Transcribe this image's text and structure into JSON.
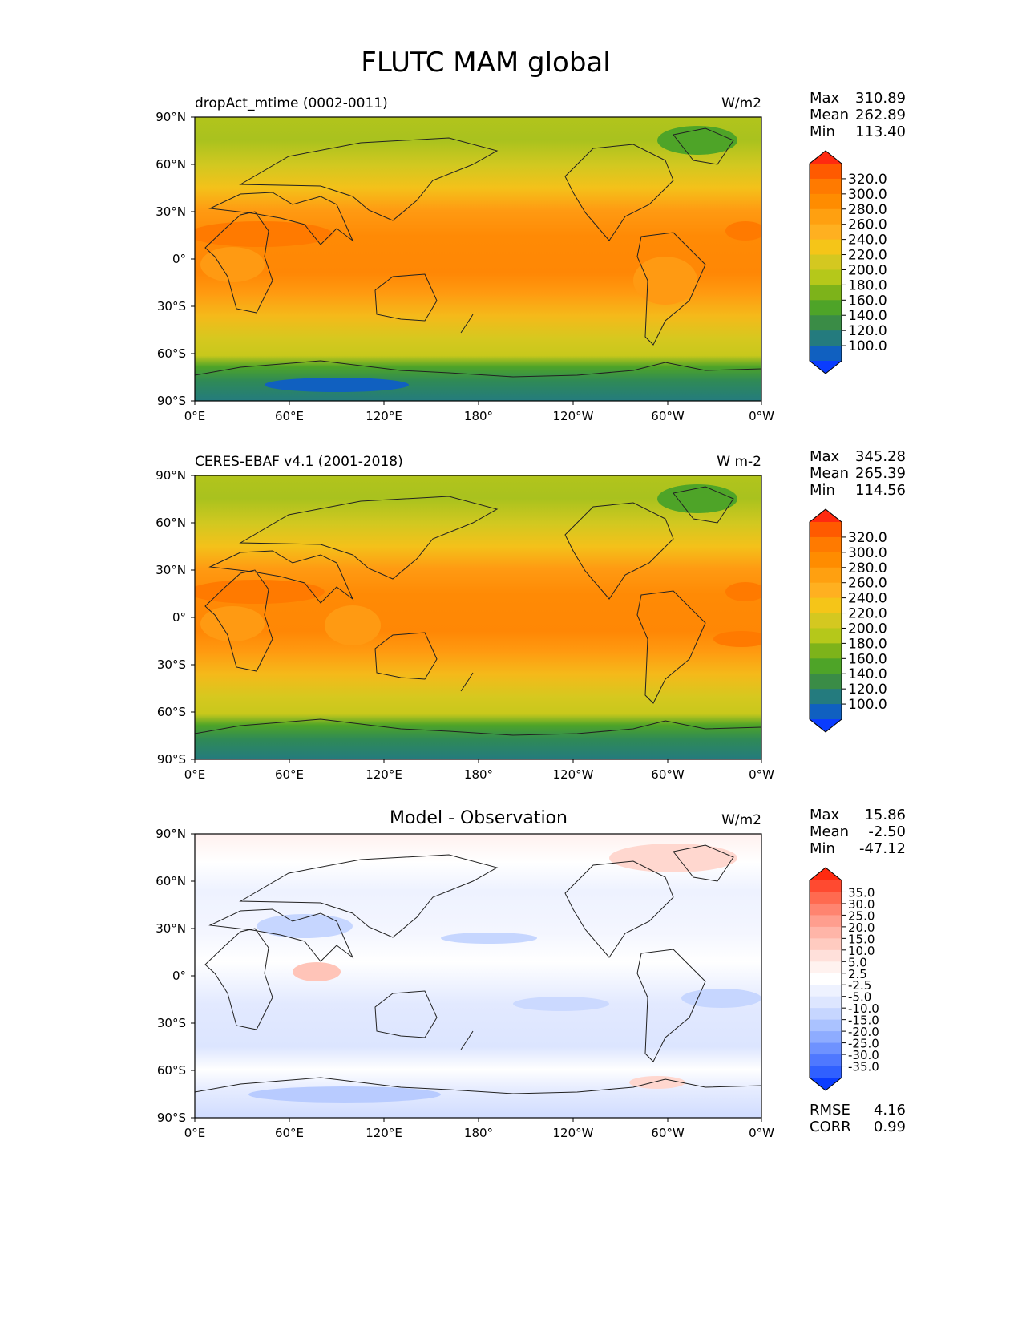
{
  "figure": {
    "title": "FLUTC MAM global"
  },
  "axes": {
    "lat_ticks": [
      "90°N",
      "60°N",
      "30°N",
      "0°",
      "30°S",
      "60°S",
      "90°S"
    ],
    "lon_ticks": [
      "0°E",
      "60°E",
      "120°E",
      "180°",
      "120°W",
      "60°W",
      "0°W"
    ]
  },
  "panels": [
    {
      "title_left": "dropAct_mtime (0002-0011)",
      "title_center": "",
      "units": "W/m2",
      "stats": [
        {
          "label": "Max",
          "value": "310.89"
        },
        {
          "label": "Mean",
          "value": "262.89"
        },
        {
          "label": "Min",
          "value": "113.40"
        }
      ],
      "colorbar": {
        "labels": [
          "320.0",
          "300.0",
          "280.0",
          "260.0",
          "240.0",
          "220.0",
          "200.0",
          "180.0",
          "160.0",
          "140.0",
          "120.0",
          "100.0"
        ],
        "colors": [
          "#ff5a00",
          "#ff7a00",
          "#ff8c00",
          "#ffa010",
          "#ffb020",
          "#f5c518",
          "#d4c820",
          "#b5c81a",
          "#7db31a",
          "#4ea428",
          "#3a8c46",
          "#247b7e",
          "#1060c0"
        ],
        "extend_top": "#ff2a10",
        "extend_bottom": "#0a3cff"
      },
      "extra_stats": []
    },
    {
      "title_left": "CERES-EBAF v4.1 (2001-2018)",
      "title_center": "",
      "units": "W m-2",
      "stats": [
        {
          "label": "Max",
          "value": "345.28"
        },
        {
          "label": "Mean",
          "value": "265.39"
        },
        {
          "label": "Min",
          "value": "114.56"
        }
      ],
      "colorbar": {
        "labels": [
          "320.0",
          "300.0",
          "280.0",
          "260.0",
          "240.0",
          "220.0",
          "200.0",
          "180.0",
          "160.0",
          "140.0",
          "120.0",
          "100.0"
        ],
        "colors": [
          "#ff5a00",
          "#ff7a00",
          "#ff8c00",
          "#ffa010",
          "#ffb020",
          "#f5c518",
          "#d4c820",
          "#b5c81a",
          "#7db31a",
          "#4ea428",
          "#3a8c46",
          "#247b7e",
          "#1060c0"
        ],
        "extend_top": "#ff2a10",
        "extend_bottom": "#0a3cff"
      },
      "extra_stats": []
    },
    {
      "title_left": "",
      "title_center": "Model - Observation",
      "units": "W/m2",
      "stats": [
        {
          "label": "Max",
          "value": "15.86"
        },
        {
          "label": "Mean",
          "value": "-2.50"
        },
        {
          "label": "Min",
          "value": "-47.12"
        }
      ],
      "colorbar": {
        "labels": [
          "35.0",
          "30.0",
          "25.0",
          "20.0",
          "15.0",
          "10.0",
          "5.0",
          "2.5",
          "-2.5",
          "-5.0",
          "-10.0",
          "-15.0",
          "-20.0",
          "-25.0",
          "-30.0",
          "-35.0"
        ],
        "colors": [
          "#ff4a30",
          "#ff6a50",
          "#ff8470",
          "#ff9e8e",
          "#ffb5a8",
          "#ffcbc0",
          "#ffe0da",
          "#fff2ef",
          "#ffffff",
          "#eef2ff",
          "#dde6ff",
          "#c6d6ff",
          "#aac2ff",
          "#8eacff",
          "#6e92ff",
          "#4f78ff",
          "#3060ff"
        ],
        "extend_top": "#ff2a10",
        "extend_bottom": "#0a3cff"
      },
      "extra_stats": [
        {
          "label": "RMSE",
          "value": "4.16"
        },
        {
          "label": "CORR",
          "value": "0.99"
        }
      ]
    }
  ]
}
